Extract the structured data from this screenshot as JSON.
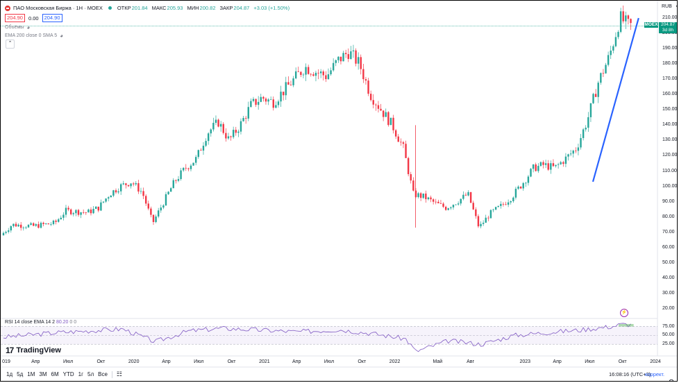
{
  "header": {
    "title": "ПАО Московская Биржа · 1Н · MOEX",
    "ohlc": [
      {
        "label": "ОТКР",
        "value": "201.84"
      },
      {
        "label": "МАКС",
        "value": "205.93"
      },
      {
        "label": "МИН",
        "value": "200.82"
      },
      {
        "label": "ЗАКР",
        "value": "204.87"
      },
      {
        "label": "",
        "value": "+3.03 (+1.50%)"
      }
    ],
    "bid": "204.90",
    "spread": "0.00",
    "ask": "204.90"
  },
  "indicators": {
    "volume_label": "Объёмы",
    "ema_label": "EMA 200 close 0 SMA 5",
    "rsi_label": "RSI 14 close EMA 14 2",
    "rsi_value": "80.20",
    "rsi_extra": "0 0"
  },
  "price_axis": {
    "currency": "RUB",
    "ticks": [
      "210.00",
      "200.00",
      "190.00",
      "180.00",
      "170.00",
      "160.00",
      "150.00",
      "140.00",
      "130.00",
      "120.00",
      "110.00",
      "100.00",
      "90.00",
      "80.00",
      "70.00",
      "60.00",
      "50.00",
      "40.00",
      "30.00",
      "20.00"
    ],
    "current_symbol": "MOEX",
    "current_price": "204.87",
    "countdown": "3d 8h",
    "rsi_ticks": [
      "75.00",
      "50.00",
      "25.00"
    ]
  },
  "time_axis": {
    "labels": [
      "019",
      "Апр",
      "Июл",
      "Окт",
      "2020",
      "Апр",
      "Июл",
      "Окт",
      "2021",
      "Апр",
      "Июл",
      "Окт",
      "2022",
      "Май",
      "Авг",
      "2023",
      "Апр",
      "Июл",
      "Окт",
      "2024"
    ]
  },
  "toolbar": {
    "timeframes": [
      "1д",
      "5д",
      "1М",
      "3М",
      "6М",
      "YTD",
      "1г",
      "5л",
      "Все"
    ],
    "clock": "16:08:16 (UTC+3)",
    "adjust_label": "коррект."
  },
  "branding": {
    "logo_text": "TradingView"
  },
  "colors": {
    "up": "#26a69a",
    "down": "#f23645",
    "trendline": "#2962ff",
    "rsi": "#7e57c2",
    "rsi_fill_hi": "#4caf50"
  },
  "chart_data": {
    "type": "candlestick",
    "symbol": "MOEX",
    "ylim": [
      15,
      215
    ],
    "x_range": [
      "2019-01",
      "2024-01"
    ],
    "price_path": [
      [
        "2019-01",
        68
      ],
      [
        "2019-02",
        75
      ],
      [
        "2019-04",
        74
      ],
      [
        "2019-06",
        76
      ],
      [
        "2019-07",
        84
      ],
      [
        "2019-09",
        83
      ],
      [
        "2019-10",
        86
      ],
      [
        "2019-11",
        95
      ],
      [
        "2019-12",
        100
      ],
      [
        "2020-01",
        103
      ],
      [
        "2020-02",
        96
      ],
      [
        "2020-03",
        76
      ],
      [
        "2020-04",
        90
      ],
      [
        "2020-05",
        103
      ],
      [
        "2020-06",
        112
      ],
      [
        "2020-07",
        118
      ],
      [
        "2020-08",
        135
      ],
      [
        "2020-09",
        142
      ],
      [
        "2020-10",
        130
      ],
      [
        "2020-11",
        140
      ],
      [
        "2020-12",
        153
      ],
      [
        "2021-01",
        158
      ],
      [
        "2021-02",
        155
      ],
      [
        "2021-03",
        162
      ],
      [
        "2021-04",
        170
      ],
      [
        "2021-05",
        178
      ],
      [
        "2021-06",
        175
      ],
      [
        "2021-07",
        172
      ],
      [
        "2021-08",
        182
      ],
      [
        "2021-09",
        188
      ],
      [
        "2021-10",
        180
      ],
      [
        "2021-11",
        160
      ],
      [
        "2021-12",
        150
      ],
      [
        "2022-01",
        140
      ],
      [
        "2022-02",
        125
      ],
      [
        "2022-03",
        95
      ],
      [
        "2022-04",
        93
      ],
      [
        "2022-05",
        89
      ],
      [
        "2022-06",
        86
      ],
      [
        "2022-07",
        90
      ],
      [
        "2022-08",
        95
      ],
      [
        "2022-09",
        73
      ],
      [
        "2022-10",
        82
      ],
      [
        "2022-11",
        87
      ],
      [
        "2022-12",
        93
      ],
      [
        "2023-01",
        102
      ],
      [
        "2023-02",
        112
      ],
      [
        "2023-03",
        114
      ],
      [
        "2023-04",
        112
      ],
      [
        "2023-05",
        118
      ],
      [
        "2023-06",
        125
      ],
      [
        "2023-07",
        143
      ],
      [
        "2023-08",
        168
      ],
      [
        "2023-09",
        185
      ],
      [
        "2023-10",
        210
      ],
      [
        "2023-10-25",
        205
      ]
    ],
    "trendline": {
      "start": [
        "2023-07-10",
        103
      ],
      "end": [
        "2023-11-15",
        210
      ]
    },
    "rsi_path": [
      [
        "2019-01",
        45
      ],
      [
        "2019-06",
        58
      ],
      [
        "2019-12",
        68
      ],
      [
        "2020-03",
        32
      ],
      [
        "2020-06",
        62
      ],
      [
        "2020-09",
        70
      ],
      [
        "2020-12",
        66
      ],
      [
        "2021-04",
        60
      ],
      [
        "2021-08",
        66
      ],
      [
        "2021-11",
        55
      ],
      [
        "2022-02",
        40
      ],
      [
        "2022-03",
        5
      ],
      [
        "2022-06",
        35
      ],
      [
        "2022-09",
        25
      ],
      [
        "2022-12",
        50
      ],
      [
        "2023-03",
        58
      ],
      [
        "2023-06",
        65
      ],
      [
        "2023-09",
        75
      ],
      [
        "2023-10",
        82
      ],
      [
        "2023-10-25",
        80
      ]
    ],
    "rsi_levels": [
      75,
      50,
      25
    ]
  }
}
